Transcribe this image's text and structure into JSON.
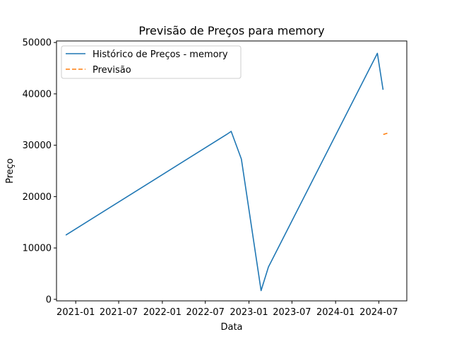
{
  "chart_data": {
    "type": "line",
    "title": "Previsão de Preços para memory",
    "xlabel": "Data",
    "ylabel": "Preço",
    "x_tick_labels": [
      "2021-01",
      "2021-07",
      "2022-01",
      "2022-07",
      "2023-01",
      "2023-07",
      "2024-01",
      "2024-07"
    ],
    "x_tick_dates": [
      "2021-01-01",
      "2021-07-01",
      "2022-01-01",
      "2022-07-01",
      "2023-01-01",
      "2023-07-01",
      "2024-01-01",
      "2024-07-01"
    ],
    "y_ticks": [
      0,
      10000,
      20000,
      30000,
      40000,
      50000
    ],
    "xlim": [
      "2020-10-12",
      "2024-10-27"
    ],
    "ylim": [
      -300,
      50300
    ],
    "legend_position": "top-left",
    "grid": false,
    "series": [
      {
        "name": "Histórico de Preços - memory",
        "color": "#1f77b4",
        "style": "solid",
        "points": [
          {
            "x": "2020-11-20",
            "y": 12500
          },
          {
            "x": "2022-09-29",
            "y": 32100
          },
          {
            "x": "2022-10-18",
            "y": 32700
          },
          {
            "x": "2022-11-30",
            "y": 27300
          },
          {
            "x": "2023-02-21",
            "y": 1700
          },
          {
            "x": "2023-03-24",
            "y": 6300
          },
          {
            "x": "2024-06-25",
            "y": 47900
          },
          {
            "x": "2024-07-19",
            "y": 40800
          }
        ]
      },
      {
        "name": "Previsão",
        "color": "#ff7f0e",
        "style": "dashed",
        "points": [
          {
            "x": "2024-07-20",
            "y": 32100
          },
          {
            "x": "2024-08-10",
            "y": 32400
          }
        ]
      }
    ]
  }
}
